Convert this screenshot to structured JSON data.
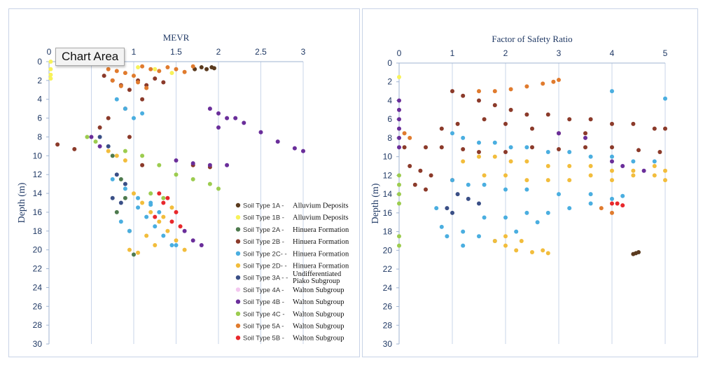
{
  "tooltip": "Chart Area",
  "chart_data": [
    {
      "type": "scatter",
      "title": "MEVR",
      "xlabel": "",
      "ylabel": "Depth (m)",
      "x_axis_position": "top",
      "y_axis_reversed": true,
      "xlim": [
        0,
        3
      ],
      "ylim": [
        0,
        30
      ],
      "xticks": [
        "0",
        "0.5",
        "1",
        "1.5",
        "2",
        "2.5",
        "3"
      ],
      "yticks": [
        "0",
        "2",
        "4",
        "6",
        "8",
        "10",
        "12",
        "14",
        "16",
        "18",
        "20",
        "22",
        "24",
        "26",
        "28",
        "30"
      ],
      "vertical_grid": true,
      "legend_position": "bottom-right",
      "legend": [
        {
          "marker": "Soil Type 1A",
          "desc": "Alluvium Deposits",
          "color": "#5a3a1e"
        },
        {
          "marker": "Soil Type 1B",
          "desc": "Alluvium Deposits",
          "color": "#f7f25a"
        },
        {
          "marker": "Soil Type 2A",
          "desc": "Hinuera Formation",
          "color": "#4e7a4e"
        },
        {
          "marker": "Soil Type 2B",
          "desc": "Hinuera Formation",
          "color": "#8b3a2a"
        },
        {
          "marker": "Soil Type 2C-",
          "desc": "Hinuera Formation",
          "color": "#4aaee0"
        },
        {
          "marker": "Soil Type 2D-",
          "desc": "Hinuera Formation",
          "color": "#f2bd3c"
        },
        {
          "marker": "Soil Type 3A -",
          "desc": "Undifferentiated Piako Subgroup",
          "color": "#3a4f86"
        },
        {
          "marker": "Soil Type 4A",
          "desc": "Walton Subgroup",
          "color": "#f3c7ef"
        },
        {
          "marker": "Soil Type 4B",
          "desc": "Walton Subgroup",
          "color": "#6a2e9a"
        },
        {
          "marker": "Soil Type 4C",
          "desc": "Walton Subgroup",
          "color": "#9ccc4f"
        },
        {
          "marker": "Soil Type 5A",
          "desc": "Walton Subgroup",
          "color": "#e07b2e"
        },
        {
          "marker": "Soil Type 5B",
          "desc": "Walton Subgroup",
          "color": "#e8282c"
        }
      ],
      "series": [
        {
          "color": "#5a3a1e",
          "x": [
            1.8,
            1.86,
            1.92,
            1.95,
            1.72
          ],
          "y": [
            0.6,
            0.8,
            0.6,
            0.7,
            0.8
          ]
        },
        {
          "color": "#f7f25a",
          "x": [
            0.02,
            0.02,
            0.02,
            0.02,
            1.05,
            1.25,
            1.45
          ],
          "y": [
            0,
            0.8,
            1.4,
            1.8,
            0.6,
            0.8,
            1.2
          ]
        },
        {
          "color": "#4e7a4e",
          "x": [
            0.75,
            0.85,
            0.9,
            0.8,
            0.95,
            1.0
          ],
          "y": [
            10.0,
            12.5,
            14.5,
            16.0,
            18.0,
            20.5
          ]
        },
        {
          "color": "#8b3a2a",
          "x": [
            0.65,
            0.75,
            0.85,
            0.95,
            1.05,
            1.15,
            1.25,
            1.35,
            1.1,
            0.9,
            0.7,
            0.6,
            0.95,
            1.1,
            0.1,
            0.3,
            1.7,
            1.9
          ],
          "y": [
            1.5,
            2.0,
            2.5,
            3.0,
            2.0,
            2.5,
            1.8,
            2.2,
            4.0,
            5.0,
            6.0,
            7.0,
            8.0,
            11.0,
            8.8,
            9.3,
            11.0,
            11.2
          ]
        },
        {
          "color": "#4aaee0",
          "x": [
            0.8,
            0.9,
            1.0,
            1.1,
            1.2,
            1.3,
            0.85,
            0.95,
            1.05,
            1.15,
            1.25,
            1.35,
            1.45,
            1.5,
            0.75,
            0.9,
            1.05,
            1.2
          ],
          "y": [
            4.0,
            5.0,
            6.0,
            5.5,
            15.0,
            16.0,
            17.0,
            18.0,
            15.5,
            16.5,
            17.5,
            18.5,
            19.5,
            19.5,
            12.5,
            13.5,
            14.5,
            15.2
          ]
        },
        {
          "color": "#f2bd3c",
          "x": [
            0.7,
            0.8,
            0.9,
            1.0,
            1.1,
            1.2,
            1.3,
            1.4,
            1.5,
            1.6,
            1.15,
            1.25,
            1.35,
            1.45,
            0.95,
            1.05
          ],
          "y": [
            9.5,
            10.0,
            10.5,
            14.0,
            15.0,
            16.0,
            17.0,
            18.0,
            19.0,
            20.0,
            18.5,
            19.5,
            16.5,
            15.5,
            20.0,
            20.3
          ]
        },
        {
          "color": "#3a4f86",
          "x": [
            0.6,
            0.7,
            0.8,
            0.9,
            0.75,
            0.85
          ],
          "y": [
            8.0,
            9.0,
            12.0,
            13.0,
            14.5,
            15.0
          ]
        },
        {
          "color": "#6a2e9a",
          "x": [
            1.9,
            2.0,
            2.1,
            2.2,
            2.3,
            2.5,
            2.7,
            2.9,
            3.0,
            1.5,
            1.7,
            1.9,
            2.1,
            0.5,
            0.6,
            1.6,
            1.7,
            1.8,
            2.0
          ],
          "y": [
            5.0,
            5.5,
            6.0,
            6.0,
            6.5,
            7.5,
            8.5,
            9.2,
            9.5,
            10.5,
            10.8,
            11.0,
            11.0,
            8.0,
            9.0,
            18.0,
            19.0,
            19.5,
            7.0
          ]
        },
        {
          "color": "#9ccc4f",
          "x": [
            0.45,
            0.55,
            0.9,
            1.1,
            1.3,
            1.5,
            1.7,
            1.9,
            2.0,
            1.2,
            1.35
          ],
          "y": [
            8.0,
            8.5,
            9.5,
            10.0,
            11.0,
            12.0,
            12.5,
            13.0,
            13.5,
            14.0,
            14.5
          ]
        },
        {
          "color": "#e07b2e",
          "x": [
            0.7,
            0.8,
            0.9,
            1.0,
            1.1,
            1.2,
            1.3,
            1.4,
            1.5,
            1.6,
            1.7,
            0.75,
            0.85,
            1.05,
            1.15
          ],
          "y": [
            0.8,
            1.0,
            1.2,
            1.5,
            0.5,
            0.8,
            1.0,
            0.6,
            0.8,
            1.1,
            0.5,
            2.0,
            2.6,
            2.2,
            2.8
          ]
        },
        {
          "color": "#e8282c",
          "x": [
            1.3,
            1.4,
            1.5,
            1.45,
            1.55,
            1.35,
            1.25
          ],
          "y": [
            14.0,
            14.5,
            16.0,
            17.0,
            17.5,
            15.0,
            16.5
          ]
        }
      ]
    },
    {
      "type": "scatter",
      "title": "Factor of Safety Ratio",
      "xlabel": "",
      "ylabel": "Depth (m)",
      "x_axis_position": "top",
      "y_axis_reversed": true,
      "xlim": [
        0,
        5
      ],
      "ylim": [
        0,
        30
      ],
      "xticks": [
        "0",
        "1",
        "2",
        "3",
        "4",
        "5"
      ],
      "yticks": [
        "0",
        "2",
        "4",
        "6",
        "8",
        "10",
        "12",
        "14",
        "16",
        "18",
        "20",
        "22",
        "24",
        "26",
        "28",
        "30"
      ],
      "vertical_grid": true,
      "series": [
        {
          "color": "#5a3a1e",
          "x": [
            4.4,
            4.45,
            4.5
          ],
          "y": [
            20.4,
            20.3,
            20.2
          ]
        },
        {
          "color": "#f7f25a",
          "x": [
            0.0
          ],
          "y": [
            1.5
          ]
        },
        {
          "color": "#8b3a2a",
          "x": [
            1.0,
            1.2,
            1.5,
            1.8,
            2.1,
            2.4,
            2.8,
            3.2,
            3.6,
            4.0,
            4.4,
            4.8,
            5.0,
            0.8,
            1.1,
            1.6,
            2.0,
            2.5,
            3.0,
            3.5,
            0.5,
            0.8,
            1.2,
            1.5,
            2.0,
            2.5,
            3.0,
            3.5,
            4.0,
            4.5,
            4.9,
            0.2,
            0.4,
            0.6,
            1.0,
            0.3,
            0.5,
            0.1
          ],
          "y": [
            3.0,
            3.5,
            4.0,
            4.5,
            5.0,
            5.5,
            5.5,
            6.0,
            6.0,
            6.5,
            6.5,
            7.0,
            7.0,
            7.0,
            6.5,
            6.0,
            6.5,
            7.0,
            7.5,
            7.5,
            9.0,
            9.0,
            9.2,
            9.5,
            9.5,
            9.0,
            9.2,
            9.0,
            9.0,
            9.3,
            9.5,
            11.0,
            11.5,
            12.0,
            12.5,
            13.0,
            13.5,
            9.0
          ]
        },
        {
          "color": "#4aaee0",
          "x": [
            1.0,
            1.2,
            1.5,
            1.8,
            2.1,
            2.4,
            2.8,
            3.2,
            3.6,
            4.0,
            4.4,
            4.8,
            1.0,
            1.3,
            1.6,
            2.0,
            2.4,
            3.0,
            3.6,
            4.2,
            0.8,
            1.2,
            1.5,
            1.8,
            2.2,
            2.6,
            1.6,
            2.0,
            2.4,
            2.8,
            3.2,
            3.6,
            4.0,
            0.7,
            0.9,
            1.2,
            4.0,
            5.0
          ],
          "y": [
            7.5,
            8.0,
            8.5,
            8.5,
            9.0,
            9.0,
            9.5,
            9.5,
            10.0,
            10.0,
            10.5,
            10.5,
            12.5,
            13.0,
            13.0,
            13.5,
            13.5,
            14.0,
            14.0,
            14.2,
            17.5,
            18.0,
            18.5,
            19.0,
            18.0,
            17.0,
            16.5,
            16.5,
            16.0,
            16.0,
            15.5,
            15.0,
            14.5,
            15.5,
            18.5,
            19.5,
            3.0,
            3.8
          ]
        },
        {
          "color": "#f2bd3c",
          "x": [
            1.2,
            1.5,
            1.8,
            2.1,
            2.4,
            2.8,
            3.2,
            3.6,
            4.0,
            4.4,
            4.8,
            5.0,
            1.6,
            2.0,
            2.4,
            2.8,
            3.2,
            3.6,
            4.0,
            4.4,
            4.8,
            5.0,
            2.0,
            2.2,
            2.5,
            2.8,
            1.8,
            2.0,
            2.3,
            2.7
          ],
          "y": [
            10.5,
            10.0,
            10.0,
            10.5,
            10.5,
            11.0,
            11.0,
            11.0,
            11.5,
            11.5,
            11.0,
            11.5,
            12.0,
            12.0,
            12.5,
            12.5,
            12.5,
            12.0,
            12.5,
            12.0,
            12.0,
            12.5,
            19.5,
            20.0,
            20.2,
            20.3,
            19.0,
            18.5,
            19.0,
            20.0
          ]
        },
        {
          "color": "#3a4f86",
          "x": [
            1.1,
            1.3,
            1.5,
            0.9,
            1.0
          ],
          "y": [
            14.0,
            14.5,
            15.0,
            15.5,
            16.0
          ]
        },
        {
          "color": "#6a2e9a",
          "x": [
            0.0,
            0.0,
            0.0,
            0.0,
            0.0,
            0.0,
            3.0,
            3.5,
            4.0,
            4.2,
            4.6
          ],
          "y": [
            4.0,
            5.0,
            6.0,
            7.0,
            8.0,
            9.0,
            7.5,
            8.0,
            10.5,
            11.0,
            11.5
          ]
        },
        {
          "color": "#9ccc4f",
          "x": [
            0.0,
            0.0,
            0.0,
            0.0,
            0.0,
            0.0
          ],
          "y": [
            12.0,
            13.0,
            14.0,
            15.0,
            18.5,
            19.5
          ]
        },
        {
          "color": "#e07b2e",
          "x": [
            1.5,
            1.8,
            2.1,
            2.4,
            2.7,
            2.9,
            3.0,
            0.1,
            0.2,
            3.8,
            4.0
          ],
          "y": [
            3.0,
            3.0,
            2.8,
            2.5,
            2.2,
            2.0,
            1.8,
            7.5,
            8.0,
            15.5,
            16.0
          ]
        },
        {
          "color": "#e8282c",
          "x": [
            4.0,
            4.1,
            4.2
          ],
          "y": [
            15.0,
            15.0,
            15.2
          ]
        }
      ]
    }
  ]
}
